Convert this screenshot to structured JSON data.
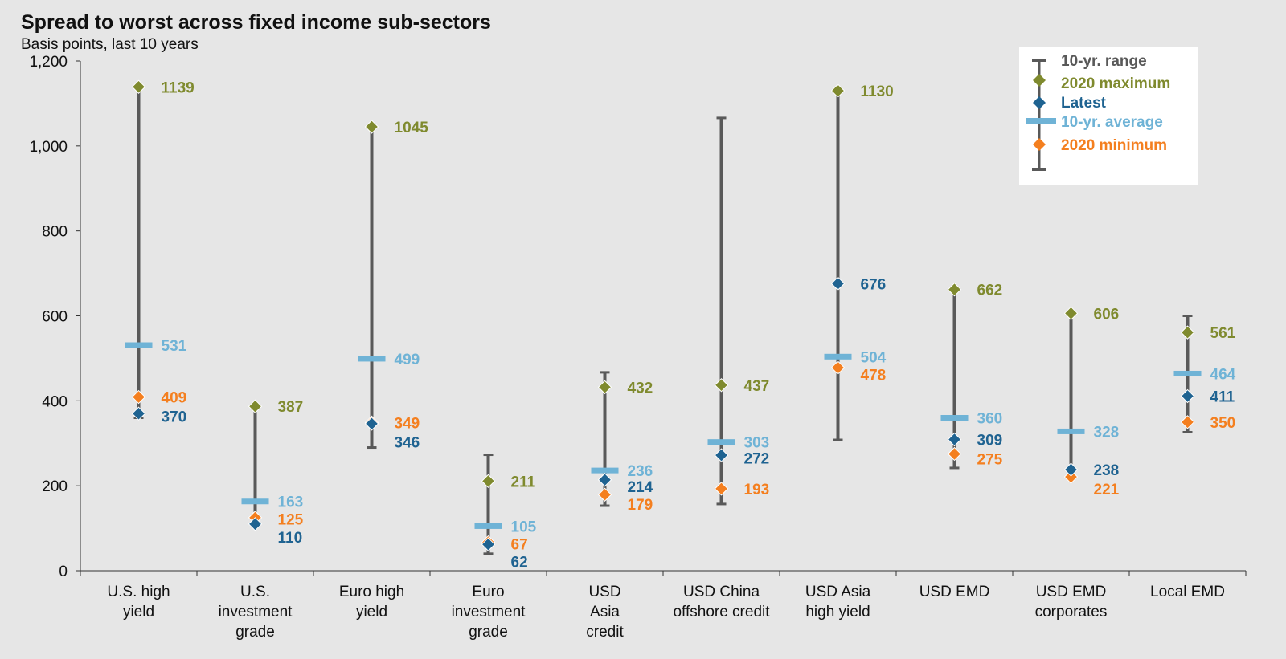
{
  "title": "Spread to worst across fixed income sub-sectors",
  "subtitle": "Basis points, last 10 years",
  "colors": {
    "range": "#595959",
    "max": "#7f8a2e",
    "latest": "#1f6391",
    "average": "#6fb3d6",
    "min": "#f47f1f"
  },
  "legend": {
    "range_label": "10-yr. range",
    "max_label": "2020 maximum",
    "latest_label": "Latest",
    "avg_label": "10-yr. average",
    "min_label": "2020 minimum",
    "placement": "top-right"
  },
  "chart_data": {
    "type": "range",
    "ylabel": "",
    "ylim": [
      0,
      1200
    ],
    "yticks": [
      "0",
      "200",
      "400",
      "600",
      "800",
      "1,000",
      "1,200"
    ],
    "ytick_values": [
      0,
      200,
      400,
      600,
      800,
      1000,
      1200
    ],
    "grid": false,
    "categories": [
      {
        "label": [
          "U.S. high",
          "yield"
        ],
        "range_low": 360,
        "range_high": 1139,
        "max": 1139,
        "latest": 370,
        "average": 531,
        "min": 409
      },
      {
        "label": [
          "U.S.",
          "investment",
          "grade"
        ],
        "range_low": 110,
        "range_high": 387,
        "max": 387,
        "latest": 110,
        "average": 163,
        "min": 125
      },
      {
        "label": [
          "Euro high",
          "yield"
        ],
        "range_low": 290,
        "range_high": 1045,
        "max": 1045,
        "latest": 346,
        "average": 499,
        "min": 349
      },
      {
        "label": [
          "Euro",
          "investment",
          "grade"
        ],
        "range_low": 40,
        "range_high": 273,
        "max": 211,
        "latest": 62,
        "average": 105,
        "min": 67
      },
      {
        "label": [
          "USD",
          "Asia",
          "credit"
        ],
        "range_low": 153,
        "range_high": 467,
        "max": 432,
        "latest": 214,
        "average": 236,
        "min": 179
      },
      {
        "label": [
          "USD China",
          "offshore credit"
        ],
        "range_low": 157,
        "range_high": 1066,
        "max": 437,
        "latest": 272,
        "average": 303,
        "min": 193
      },
      {
        "label": [
          "USD Asia",
          "high yield"
        ],
        "range_low": 308,
        "range_high": 1130,
        "max": 1130,
        "latest": 676,
        "average": 504,
        "min": 478
      },
      {
        "label": [
          "USD EMD"
        ],
        "range_low": 242,
        "range_high": 662,
        "max": 662,
        "latest": 309,
        "average": 360,
        "min": 275
      },
      {
        "label": [
          "USD EMD",
          "corporates"
        ],
        "range_low": 221,
        "range_high": 606,
        "max": 606,
        "latest": 238,
        "average": 328,
        "min": 221
      },
      {
        "label": [
          "Local EMD"
        ],
        "range_low": 326,
        "range_high": 600,
        "max": 561,
        "latest": 411,
        "average": 464,
        "min": 350
      }
    ],
    "data_labels": [
      {
        "max": "1139",
        "avg": "531",
        "min": "409",
        "latest": "370"
      },
      {
        "max": "387",
        "avg": "163",
        "min": "125",
        "latest": "110"
      },
      {
        "max": "1045",
        "avg": "499",
        "min": "349",
        "latest": "346"
      },
      {
        "max": "211",
        "avg": "105",
        "min": "67",
        "latest": "62"
      },
      {
        "max": "432",
        "avg": "236",
        "min": "179",
        "latest": "214"
      },
      {
        "max": "437",
        "avg": "303",
        "min": "193",
        "latest": "272"
      },
      {
        "max": "1130",
        "avg": "504",
        "min": "478",
        "latest": "676"
      },
      {
        "max": "662",
        "avg": "360",
        "min": "275",
        "latest": "309"
      },
      {
        "max": "606",
        "avg": "328",
        "min": "221",
        "latest": "238"
      },
      {
        "max": "561",
        "avg": "464",
        "min": "350",
        "latest": "411"
      }
    ]
  }
}
